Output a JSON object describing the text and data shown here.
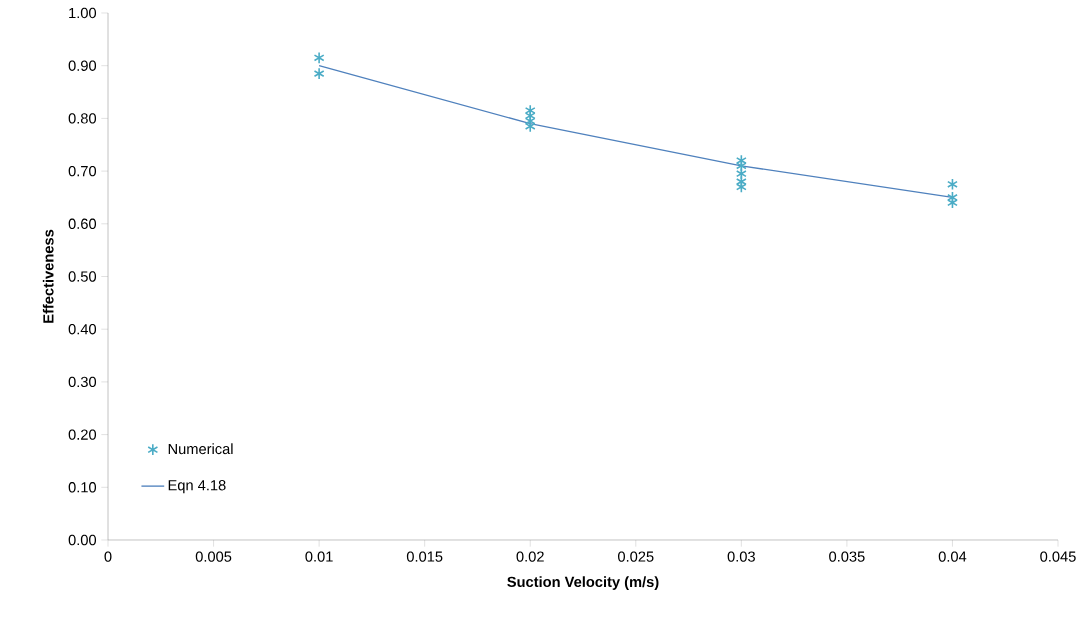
{
  "chart_data": {
    "type": "scatter",
    "xlabel": "Suction Velocity (m/s)",
    "ylabel": "Effectiveness",
    "xlim": [
      0,
      0.045
    ],
    "ylim": [
      0,
      1
    ],
    "xticks": [
      0,
      0.005,
      0.01,
      0.015,
      0.02,
      0.025,
      0.03,
      0.035,
      0.04,
      0.045
    ],
    "yticks": [
      {
        "value": 0,
        "label": "0.00"
      },
      {
        "value": 0.1,
        "label": "0.10"
      },
      {
        "value": 0.2,
        "label": "0.20"
      },
      {
        "value": 0.3,
        "label": "0.30"
      },
      {
        "value": 0.4,
        "label": "0.40"
      },
      {
        "value": 0.5,
        "label": "0.50"
      },
      {
        "value": 0.6,
        "label": "0.60"
      },
      {
        "value": 0.7,
        "label": "0.70"
      },
      {
        "value": 0.8,
        "label": "0.80"
      },
      {
        "value": 0.9,
        "label": "0.90"
      },
      {
        "value": 1,
        "label": "1.00"
      }
    ],
    "grid": false,
    "legend": "bottom left",
    "series": [
      {
        "name": "Numerical",
        "marker": "cross",
        "color": "#4bacc6",
        "x": [
          0.01,
          0.01,
          0.02,
          0.02,
          0.02,
          0.02,
          0.03,
          0.03,
          0.03,
          0.03,
          0.03,
          0.04,
          0.04,
          0.04
        ],
        "values": [
          0.915,
          0.885,
          0.815,
          0.805,
          0.795,
          0.785,
          0.72,
          0.71,
          0.695,
          0.68,
          0.67,
          0.675,
          0.65,
          0.64
        ]
      },
      {
        "name": "Eqn 4.18",
        "type": "line",
        "marker": "none",
        "line_style": "solid",
        "color": "#4f81bd",
        "x": [
          0.01,
          0.02,
          0.03,
          0.04
        ],
        "values": [
          0.9,
          0.79,
          0.71,
          0.65
        ]
      }
    ]
  }
}
